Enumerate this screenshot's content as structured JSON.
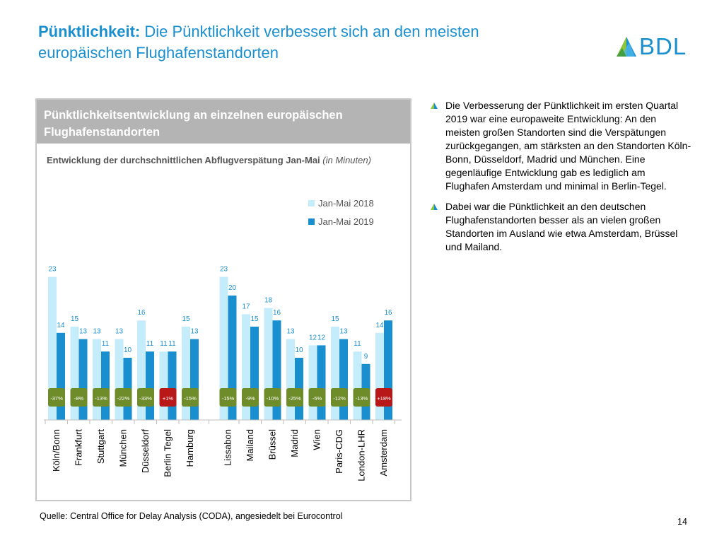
{
  "header": {
    "title_bold": "Pünktlichkeit:",
    "title_rest": " Die Pünktlichkeit verbessert sich an den meisten europäischen Flughafenstandorten",
    "logo_text": "BDL"
  },
  "panel": {
    "heading": "Pünktlichkeitsentwicklung an einzelnen europäischen Flughafenstandorten"
  },
  "chart_data": {
    "type": "bar",
    "title": "Entwicklung der durchschnittlichen Abflugverspätung Jan-Mai",
    "title_unit": "(in Minuten)",
    "categories": [
      "Köln/Bonn",
      "Frankfurt",
      "Stuttgart",
      "München",
      "Düsseldorf",
      "Berlin Tegel",
      "Hamburg",
      "Lissabon",
      "Mailand",
      "Brüssel",
      "Madrid",
      "Wien",
      "Paris-CDG",
      "London-LHR",
      "Amsterdam"
    ],
    "series": [
      {
        "name": "Jan-Mai 2018",
        "color": "#c5ecfa",
        "values": [
          23,
          15,
          13,
          13,
          16,
          11,
          15,
          23,
          17,
          18,
          13,
          12,
          15,
          11,
          14
        ]
      },
      {
        "name": "Jan-Mai 2019",
        "color": "#1a8fd0",
        "values": [
          14,
          13,
          11,
          10,
          11,
          11,
          13,
          20,
          15,
          16,
          10,
          12,
          13,
          9,
          16
        ]
      }
    ],
    "change_labels": [
      "-37%",
      "-8%",
      "-13%",
      "-22%",
      "-33%",
      "+1%",
      "-15%",
      "-15%",
      "-9%",
      "-10%",
      "-25%",
      "-5%",
      "-12%",
      "-13%",
      "+18%"
    ],
    "change_positive": [
      false,
      false,
      false,
      false,
      false,
      true,
      false,
      false,
      false,
      false,
      false,
      false,
      false,
      false,
      true
    ],
    "badge_colors": {
      "improved": "#6e8c2a",
      "worsened": "#b81818"
    },
    "ylim": [
      0,
      25
    ],
    "legend_position": "top-right",
    "grid": false
  },
  "bullets": [
    "Die Verbesserung der Pünktlichkeit im ersten Quartal 2019 war eine europaweite Entwicklung: An den meisten großen Standorten sind die Verspätungen zurückgegangen, am stärksten an den Standorten Köln-Bonn, Düsseldorf, Madrid und München. Eine gegenläufige Entwicklung gab es lediglich am Flughafen Amsterdam und minimal in Berlin-Tegel.",
    "Dabei war die Pünktlichkeit an den deutschen Flughafenstandorten besser als an vielen großen Standorten im Ausland wie etwa Amsterdam, Brüssel und Mailand."
  ],
  "footer": {
    "source": "Quelle: Central Office for Delay Analysis (CODA), angesiedelt bei Eurocontrol",
    "page_number": "14"
  }
}
